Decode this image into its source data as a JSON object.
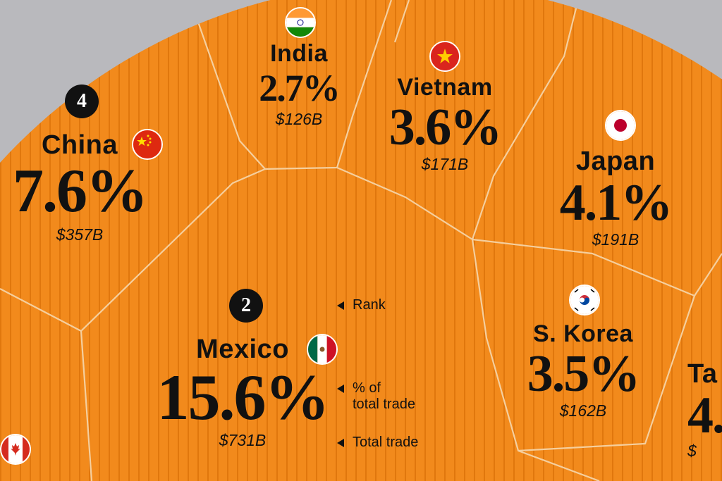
{
  "chart_data": {
    "type": "voronoi",
    "title": "",
    "series_metric": "% of total trade",
    "items": [
      {
        "country": "India",
        "pct": "2.7%",
        "amount": "$126B",
        "flag": "india-flag"
      },
      {
        "country": "Vietnam",
        "pct": "3.6%",
        "amount": "$171B",
        "flag": "vietnam-flag"
      },
      {
        "country": "China",
        "pct": "7.6%",
        "amount": "$357B",
        "rank": "4",
        "flag": "china-flag"
      },
      {
        "country": "Japan",
        "pct": "4.1%",
        "amount": "$191B",
        "flag": "japan-flag"
      },
      {
        "country": "Mexico",
        "pct": "15.6%",
        "amount": "$731B",
        "rank": "2",
        "flag": "mexico-flag"
      },
      {
        "country": "S. Korea",
        "pct": "3.5%",
        "amount": "$162B",
        "flag": "south-korea-flag"
      },
      {
        "country": "Ta",
        "pct": "4.",
        "amount": "$",
        "flag": "",
        "note": "cropped at right edge"
      },
      {
        "country": "",
        "pct": "",
        "amount": "",
        "flag": "canada-flag",
        "note": "cropped at bottom-left"
      }
    ],
    "legend": {
      "rank": "Rank",
      "pct_line1": "% of",
      "pct_line2": "total trade",
      "amount": "Total trade"
    },
    "colors": {
      "cell": "#f28a1c",
      "stripe": "#e67e12",
      "border": "#f7d7ad",
      "background": "#b9b9bd",
      "text": "#111111"
    }
  }
}
